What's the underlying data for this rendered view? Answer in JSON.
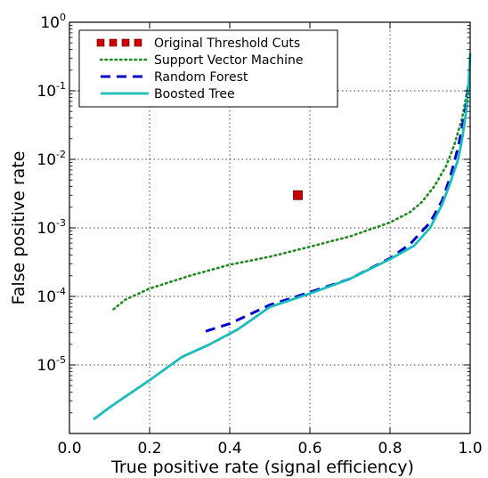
{
  "chart_data": {
    "type": "line",
    "title": "",
    "xlabel": "True positive rate (signal efficiency)",
    "ylabel": "False positive rate",
    "xlim": [
      0.0,
      1.0
    ],
    "ylim": [
      1e-06,
      1
    ],
    "yscale": "log",
    "grid": true,
    "legend_position": "top-left",
    "x_ticks": [
      {
        "value": 0.0,
        "label": "0.0"
      },
      {
        "value": 0.2,
        "label": "0.2"
      },
      {
        "value": 0.4,
        "label": "0.4"
      },
      {
        "value": 0.6,
        "label": "0.6"
      },
      {
        "value": 0.8,
        "label": "0.8"
      },
      {
        "value": 1.0,
        "label": "1.0"
      }
    ],
    "y_ticks": [
      {
        "value": 1e-05,
        "base": "10",
        "exp": "-5"
      },
      {
        "value": 0.0001,
        "base": "10",
        "exp": "-4"
      },
      {
        "value": 0.001,
        "base": "10",
        "exp": "-3"
      },
      {
        "value": 0.01,
        "base": "10",
        "exp": "-2"
      },
      {
        "value": 0.1,
        "base": "10",
        "exp": "-1"
      },
      {
        "value": 1,
        "base": "10",
        "exp": "0"
      }
    ],
    "series": [
      {
        "name": "Original Threshold Cuts",
        "kind": "marker",
        "color": "#cc0000",
        "points": [
          [
            0.57,
            0.003
          ]
        ]
      },
      {
        "name": "Support Vector Machine",
        "kind": "dotted",
        "color": "#1f8a1f",
        "points": [
          [
            0.11,
            6.5e-05
          ],
          [
            0.14,
            9e-05
          ],
          [
            0.2,
            0.00013
          ],
          [
            0.3,
            0.0002
          ],
          [
            0.4,
            0.00029
          ],
          [
            0.5,
            0.00038
          ],
          [
            0.6,
            0.00053
          ],
          [
            0.7,
            0.00075
          ],
          [
            0.8,
            0.0012
          ],
          [
            0.85,
            0.0017
          ],
          [
            0.88,
            0.0024
          ],
          [
            0.91,
            0.004
          ],
          [
            0.94,
            0.008
          ],
          [
            0.96,
            0.016
          ],
          [
            0.98,
            0.04
          ],
          [
            0.995,
            0.12
          ]
        ]
      },
      {
        "name": "Random Forest",
        "kind": "dashed",
        "color": "#0000cc",
        "points": [
          [
            0.34,
            3.1e-05
          ],
          [
            0.4,
            4e-05
          ],
          [
            0.5,
            7.5e-05
          ],
          [
            0.6,
            0.000115
          ],
          [
            0.7,
            0.00018
          ],
          [
            0.8,
            0.00036
          ],
          [
            0.85,
            0.00058
          ],
          [
            0.9,
            0.0012
          ],
          [
            0.93,
            0.0025
          ],
          [
            0.95,
            0.0055
          ],
          [
            0.97,
            0.015
          ],
          [
            0.98,
            0.03
          ],
          [
            0.99,
            0.06
          ],
          [
            0.995,
            0.12
          ]
        ]
      },
      {
        "name": "Boosted Tree",
        "kind": "solid",
        "color": "#1bbcbc",
        "points": [
          [
            0.06,
            1.6e-06
          ],
          [
            0.1,
            2.4e-06
          ],
          [
            0.2,
            6e-06
          ],
          [
            0.28,
            1.3e-05
          ],
          [
            0.35,
            2e-05
          ],
          [
            0.42,
            3.3e-05
          ],
          [
            0.5,
            7e-05
          ],
          [
            0.6,
            0.00011
          ],
          [
            0.7,
            0.00018
          ],
          [
            0.8,
            0.00035
          ],
          [
            0.86,
            0.00055
          ],
          [
            0.9,
            0.001
          ],
          [
            0.93,
            0.0022
          ],
          [
            0.95,
            0.0045
          ],
          [
            0.97,
            0.01
          ],
          [
            0.98,
            0.02
          ],
          [
            0.99,
            0.05
          ],
          [
            0.995,
            0.1
          ],
          [
            1.0,
            0.35
          ]
        ]
      }
    ]
  }
}
